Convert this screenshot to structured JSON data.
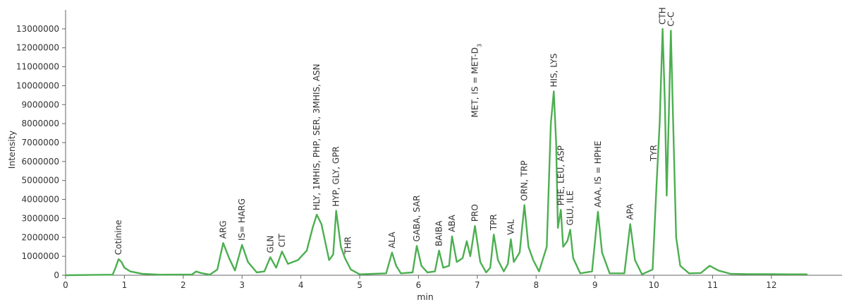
{
  "chart_data": {
    "type": "line",
    "title": "",
    "xlabel": "min",
    "ylabel": "Intensity",
    "xlim": [
      0,
      13.2
    ],
    "ylim": [
      0,
      14000000
    ],
    "x_ticks": [
      0,
      1,
      2,
      3,
      4,
      5,
      6,
      7,
      8,
      9,
      10,
      11,
      12
    ],
    "y_ticks": [
      0,
      1000000,
      2000000,
      3000000,
      4000000,
      5000000,
      6000000,
      7000000,
      8000000,
      9000000,
      10000000,
      11000000,
      12000000,
      13000000
    ],
    "grid": false,
    "line_color": "#4caf50",
    "series": [
      {
        "points": [
          [
            0,
            0
          ],
          [
            0.8,
            30000
          ],
          [
            0.85,
            400000
          ],
          [
            0.9,
            850000
          ],
          [
            0.95,
            700000
          ],
          [
            1.0,
            400000
          ],
          [
            1.1,
            200000
          ],
          [
            1.3,
            80000
          ],
          [
            1.6,
            30000
          ],
          [
            2.15,
            40000
          ],
          [
            2.22,
            200000
          ],
          [
            2.3,
            120000
          ],
          [
            2.45,
            30000
          ],
          [
            2.58,
            300000
          ],
          [
            2.68,
            1700000
          ],
          [
            2.78,
            900000
          ],
          [
            2.88,
            250000
          ],
          [
            3.0,
            1600000
          ],
          [
            3.1,
            700000
          ],
          [
            3.25,
            150000
          ],
          [
            3.38,
            200000
          ],
          [
            3.48,
            950000
          ],
          [
            3.58,
            400000
          ],
          [
            3.68,
            1250000
          ],
          [
            3.78,
            600000
          ],
          [
            3.95,
            800000
          ],
          [
            4.1,
            1300000
          ],
          [
            4.2,
            2500000
          ],
          [
            4.27,
            3200000
          ],
          [
            4.35,
            2700000
          ],
          [
            4.48,
            800000
          ],
          [
            4.55,
            1100000
          ],
          [
            4.6,
            3400000
          ],
          [
            4.68,
            1500000
          ],
          [
            4.75,
            900000
          ],
          [
            4.85,
            300000
          ],
          [
            5.0,
            50000
          ],
          [
            5.45,
            100000
          ],
          [
            5.55,
            1200000
          ],
          [
            5.62,
            500000
          ],
          [
            5.7,
            100000
          ],
          [
            5.9,
            150000
          ],
          [
            5.97,
            1550000
          ],
          [
            6.05,
            500000
          ],
          [
            6.15,
            150000
          ],
          [
            6.28,
            200000
          ],
          [
            6.35,
            1300000
          ],
          [
            6.42,
            400000
          ],
          [
            6.52,
            500000
          ],
          [
            6.57,
            2050000
          ],
          [
            6.65,
            700000
          ],
          [
            6.75,
            900000
          ],
          [
            6.82,
            1800000
          ],
          [
            6.88,
            1000000
          ],
          [
            6.96,
            2600000
          ],
          [
            7.05,
            700000
          ],
          [
            7.15,
            150000
          ],
          [
            7.22,
            400000
          ],
          [
            7.28,
            2150000
          ],
          [
            7.35,
            800000
          ],
          [
            7.45,
            200000
          ],
          [
            7.52,
            600000
          ],
          [
            7.57,
            1900000
          ],
          [
            7.62,
            700000
          ],
          [
            7.72,
            1200000
          ],
          [
            7.8,
            3700000
          ],
          [
            7.87,
            1500000
          ],
          [
            7.95,
            800000
          ],
          [
            8.05,
            200000
          ],
          [
            8.18,
            1500000
          ],
          [
            8.25,
            8000000
          ],
          [
            8.3,
            9700000
          ],
          [
            8.34,
            7000000
          ],
          [
            8.37,
            2500000
          ],
          [
            8.42,
            3450000
          ],
          [
            8.46,
            1500000
          ],
          [
            8.53,
            1800000
          ],
          [
            8.58,
            2400000
          ],
          [
            8.63,
            900000
          ],
          [
            8.75,
            100000
          ],
          [
            8.95,
            200000
          ],
          [
            9.05,
            3350000
          ],
          [
            9.12,
            1200000
          ],
          [
            9.25,
            100000
          ],
          [
            9.5,
            100000
          ],
          [
            9.6,
            2700000
          ],
          [
            9.68,
            800000
          ],
          [
            9.8,
            50000
          ],
          [
            9.98,
            300000
          ],
          [
            10.05,
            5000000
          ],
          [
            10.1,
            8000000
          ],
          [
            10.15,
            13000000
          ],
          [
            10.19,
            9000000
          ],
          [
            10.22,
            4200000
          ],
          [
            10.26,
            9000000
          ],
          [
            10.29,
            12900000
          ],
          [
            10.33,
            8000000
          ],
          [
            10.38,
            2000000
          ],
          [
            10.45,
            500000
          ],
          [
            10.6,
            100000
          ],
          [
            10.8,
            120000
          ],
          [
            10.95,
            500000
          ],
          [
            11.1,
            250000
          ],
          [
            11.3,
            80000
          ],
          [
            11.6,
            60000
          ],
          [
            12.0,
            60000
          ],
          [
            12.3,
            50000
          ],
          [
            12.6,
            50000
          ]
        ]
      }
    ],
    "annotations": [
      {
        "text": "Cotinine",
        "x": 0.9,
        "y": 850000
      },
      {
        "text": "ARG",
        "x": 2.68,
        "y": 1700000
      },
      {
        "text": "IS= HARG",
        "x": 3.0,
        "y": 1600000
      },
      {
        "text": "GLN",
        "x": 3.48,
        "y": 950000
      },
      {
        "text": "CIT",
        "x": 3.68,
        "y": 1250000
      },
      {
        "text": "HLY, 1MHIS, PHP, SER, 3MHIS, ASN",
        "x": 4.27,
        "y": 3200000
      },
      {
        "text": "HYP, GLY, GPR",
        "x": 4.6,
        "y": 3400000
      },
      {
        "text": "THR",
        "x": 4.8,
        "y": 900000
      },
      {
        "text": "ALA",
        "x": 5.55,
        "y": 1200000
      },
      {
        "text": "GABA, SAR",
        "x": 5.97,
        "y": 1550000
      },
      {
        "text": "BAIBA",
        "x": 6.35,
        "y": 1300000
      },
      {
        "text": "ABA",
        "x": 6.57,
        "y": 2050000
      },
      {
        "text": "PRO",
        "x": 6.96,
        "y": 2600000
      },
      {
        "text": "MET, IS = MET-D",
        "subscript": "3",
        "x": 6.96,
        "y": 8100000
      },
      {
        "text": "TPR",
        "x": 7.28,
        "y": 2150000
      },
      {
        "text": "VAL",
        "x": 7.57,
        "y": 1900000
      },
      {
        "text": "ORN, TRP",
        "x": 7.8,
        "y": 3700000
      },
      {
        "text": "HIS, LYS",
        "x": 8.3,
        "y": 9700000
      },
      {
        "text": "PHE, LEU, ASP",
        "x": 8.42,
        "y": 3450000
      },
      {
        "text": "GLU, ILE",
        "x": 8.58,
        "y": 2400000
      },
      {
        "text": "AAA, IS = HPHE",
        "x": 9.05,
        "y": 3350000
      },
      {
        "text": "APA",
        "x": 9.6,
        "y": 2700000
      },
      {
        "text": "TYR",
        "x": 10.0,
        "y": 5800000
      },
      {
        "text": "CTH",
        "x": 10.15,
        "y": 13000000
      },
      {
        "text": "C-C",
        "x": 10.29,
        "y": 12900000
      }
    ]
  }
}
